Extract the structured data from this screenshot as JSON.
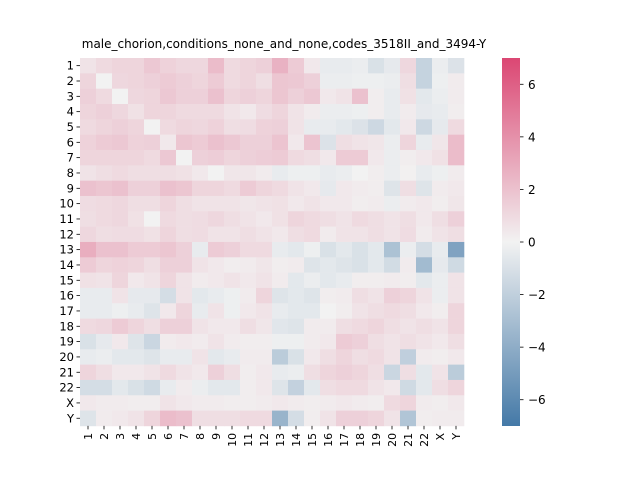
{
  "chart_data": {
    "type": "heatmap",
    "title": "male_chorion,conditions_none_and_none,codes_3518II_and_3494-Y",
    "xlabel": "",
    "ylabel": "",
    "x_labels": [
      "1",
      "2",
      "3",
      "4",
      "5",
      "6",
      "7",
      "8",
      "9",
      "10",
      "11",
      "12",
      "13",
      "14",
      "15",
      "16",
      "17",
      "18",
      "19",
      "20",
      "21",
      "22",
      "X",
      "Y"
    ],
    "y_labels": [
      "1",
      "2",
      "3",
      "4",
      "5",
      "6",
      "7",
      "8",
      "9",
      "10",
      "11",
      "12",
      "13",
      "14",
      "15",
      "16",
      "17",
      "18",
      "19",
      "20",
      "21",
      "22",
      "X",
      "Y"
    ],
    "colorbar": {
      "min": -7,
      "max": 7,
      "ticks": [
        -6,
        -4,
        -2,
        0,
        2,
        4,
        6
      ],
      "neg_color": "#4479a7",
      "mid_color": "#f2f2f2",
      "pos_color": "#db4773"
    },
    "values": [
      [
        0.6,
        1.0,
        1.2,
        1.2,
        1.7,
        1.3,
        1.1,
        1.1,
        2.2,
        1.0,
        1.2,
        1.4,
        2.6,
        1.6,
        0.4,
        -0.4,
        -0.4,
        -0.3,
        -1.0,
        -0.5,
        1.1,
        -1.8,
        -0.3,
        -0.9
      ],
      [
        1.2,
        0.0,
        1.1,
        1.2,
        1.4,
        1.6,
        1.4,
        1.2,
        1.6,
        1.0,
        1.2,
        0.8,
        1.8,
        1.7,
        1.4,
        -0.3,
        -0.3,
        -0.2,
        -0.2,
        -0.3,
        0.8,
        -1.8,
        -0.2,
        0.3
      ],
      [
        1.4,
        1.0,
        0.0,
        1.1,
        1.2,
        1.7,
        1.4,
        1.4,
        2.0,
        1.2,
        1.4,
        1.2,
        1.8,
        1.4,
        1.7,
        0.4,
        0.6,
        2.0,
        0.2,
        -0.4,
        0.7,
        -0.6,
        -0.3,
        0.3
      ],
      [
        1.2,
        1.4,
        1.1,
        0.7,
        1.2,
        1.2,
        1.0,
        1.0,
        1.0,
        0.6,
        0.4,
        0.9,
        1.2,
        0.6,
        0.3,
        -0.3,
        -0.3,
        -0.2,
        0.2,
        -0.4,
        0.3,
        -0.5,
        -0.4,
        0.2
      ],
      [
        1.0,
        1.2,
        1.4,
        1.2,
        0.0,
        1.0,
        1.2,
        1.1,
        1.3,
        0.8,
        0.9,
        1.3,
        1.4,
        0.6,
        -0.4,
        -0.4,
        -0.6,
        -0.9,
        -1.5,
        -0.6,
        0.4,
        -1.5,
        -0.5,
        1.0
      ],
      [
        1.3,
        1.6,
        1.7,
        1.3,
        1.4,
        0.4,
        1.8,
        1.6,
        2.0,
        1.7,
        1.4,
        1.4,
        1.9,
        0.4,
        1.9,
        -0.9,
        0.8,
        0.6,
        0.5,
        -0.3,
        1.2,
        -0.4,
        0.5,
        2.2
      ],
      [
        1.2,
        1.2,
        1.2,
        1.2,
        1.0,
        1.7,
        0.0,
        1.4,
        1.5,
        1.2,
        1.4,
        1.5,
        1.6,
        1.0,
        0.8,
        0.4,
        1.6,
        1.6,
        0.4,
        -0.3,
        0.2,
        0.4,
        0.7,
        2.2
      ],
      [
        0.6,
        0.8,
        1.0,
        0.8,
        0.8,
        0.8,
        0.7,
        0.4,
        0.0,
        0.5,
        0.5,
        0.3,
        -0.4,
        -0.2,
        -0.2,
        -0.4,
        -0.3,
        0.0,
        0.2,
        -0.3,
        0.1,
        -0.4,
        -0.2,
        0.3
      ],
      [
        2.0,
        1.8,
        2.0,
        1.4,
        1.4,
        2.0,
        1.8,
        1.2,
        1.2,
        1.0,
        1.6,
        1.2,
        1.0,
        0.6,
        0.4,
        -0.5,
        0.4,
        0.3,
        0.2,
        -0.8,
        0.8,
        -0.8,
        0.3,
        0.4
      ],
      [
        0.9,
        1.0,
        1.1,
        0.8,
        0.8,
        1.2,
        0.8,
        0.6,
        0.6,
        0.6,
        0.5,
        0.6,
        0.7,
        0.4,
        0.6,
        0.4,
        0.4,
        0.2,
        0.3,
        -0.3,
        0.3,
        0.4,
        0.2,
        0.5
      ],
      [
        0.8,
        1.0,
        1.1,
        0.7,
        0.0,
        1.0,
        0.8,
        0.9,
        1.1,
        0.8,
        0.6,
        0.4,
        0.7,
        1.2,
        1.0,
        0.8,
        0.6,
        1.0,
        0.8,
        0.6,
        0.8,
        0.4,
        0.8,
        1.4
      ],
      [
        1.1,
        0.8,
        0.9,
        0.9,
        0.7,
        1.2,
        0.8,
        0.9,
        0.6,
        0.6,
        0.8,
        0.6,
        0.4,
        0.8,
        1.0,
        0.3,
        0.6,
        0.6,
        0.8,
        0.6,
        0.9,
        0.3,
        0.6,
        0.8
      ],
      [
        2.8,
        2.0,
        2.0,
        1.6,
        1.6,
        1.8,
        1.4,
        -0.4,
        1.6,
        1.4,
        1.0,
        1.0,
        -0.4,
        -0.6,
        -0.2,
        -1.0,
        -0.6,
        -1.0,
        -0.6,
        -2.8,
        -0.3,
        -1.2,
        -0.4,
        -4.6
      ],
      [
        1.6,
        1.2,
        1.3,
        1.2,
        0.8,
        1.4,
        1.4,
        0.6,
        0.4,
        0.2,
        0.3,
        0.5,
        0.2,
        0.3,
        -0.8,
        -0.6,
        -0.8,
        -1.0,
        -0.6,
        -1.3,
        0.3,
        -3.2,
        -0.5,
        -1.4
      ],
      [
        0.7,
        0.6,
        1.2,
        0.4,
        0.6,
        1.2,
        0.6,
        0.3,
        0.4,
        0.6,
        0.4,
        0.6,
        0.3,
        -0.6,
        -0.3,
        -0.6,
        -0.4,
        0.2,
        0.2,
        0.3,
        0.2,
        -0.6,
        -0.3,
        0.6
      ],
      [
        -0.4,
        -0.4,
        0.6,
        -0.5,
        -0.5,
        -1.2,
        0.6,
        -0.6,
        -0.4,
        -0.2,
        0.3,
        1.2,
        -0.8,
        -0.6,
        -0.8,
        0.2,
        0.3,
        0.8,
        0.6,
        1.4,
        1.2,
        0.6,
        -0.3,
        0.6
      ],
      [
        -0.4,
        -0.4,
        -0.2,
        -0.4,
        -0.8,
        0.4,
        1.2,
        -0.4,
        0.6,
        -0.2,
        0.4,
        0.6,
        -0.4,
        -0.6,
        -0.6,
        0.0,
        0.2,
        0.6,
        0.8,
        1.0,
        0.8,
        0.4,
        0.2,
        1.2
      ],
      [
        1.0,
        1.1,
        1.6,
        1.2,
        0.8,
        1.4,
        1.4,
        0.6,
        0.4,
        0.4,
        0.8,
        0.5,
        -0.7,
        -0.8,
        0.3,
        0.3,
        0.8,
        1.0,
        1.2,
        0.8,
        0.6,
        0.8,
        0.6,
        1.2
      ],
      [
        -1.0,
        -0.5,
        0.4,
        -0.8,
        -1.6,
        0.3,
        0.4,
        0.3,
        0.6,
        0.3,
        0.2,
        0.2,
        -0.2,
        -0.2,
        0.3,
        0.4,
        1.6,
        1.4,
        0.8,
        0.6,
        0.8,
        0.6,
        0.4,
        0.8
      ],
      [
        -0.4,
        -0.3,
        -0.6,
        -0.6,
        -0.8,
        -0.4,
        -0.4,
        0.6,
        -0.6,
        -0.4,
        0.3,
        0.3,
        -2.2,
        -1.0,
        0.4,
        0.8,
        1.2,
        0.8,
        1.0,
        0.6,
        -2.0,
        0.3,
        0.2,
        0.4
      ],
      [
        1.2,
        0.8,
        0.4,
        0.4,
        0.6,
        1.0,
        0.6,
        0.4,
        1.4,
        0.8,
        0.2,
        0.4,
        -0.4,
        -0.3,
        0.8,
        1.2,
        1.4,
        1.2,
        0.8,
        -1.6,
        0.8,
        -0.6,
        0.6,
        -2.2
      ],
      [
        -1.2,
        -1.2,
        -0.6,
        -1.0,
        -1.4,
        -0.4,
        0.3,
        -0.3,
        -0.6,
        -0.6,
        0.2,
        0.4,
        -0.8,
        -1.9,
        -0.6,
        0.8,
        1.0,
        1.0,
        0.6,
        0.4,
        -1.4,
        -0.6,
        0.8,
        1.2
      ],
      [
        0.4,
        0.3,
        0.3,
        0.2,
        0.2,
        0.6,
        0.4,
        0.3,
        0.3,
        0.2,
        0.2,
        0.3,
        0.4,
        0.3,
        0.2,
        0.3,
        0.4,
        0.3,
        0.2,
        1.0,
        1.2,
        0.3,
        0.2,
        0.4
      ],
      [
        -0.8,
        0.3,
        0.4,
        0.6,
        1.2,
        2.2,
        2.0,
        0.8,
        0.8,
        0.8,
        1.0,
        1.0,
        -3.6,
        -1.2,
        0.2,
        0.6,
        1.4,
        1.4,
        1.2,
        0.6,
        -2.6,
        0.2,
        0.3,
        0.3
      ]
    ]
  }
}
